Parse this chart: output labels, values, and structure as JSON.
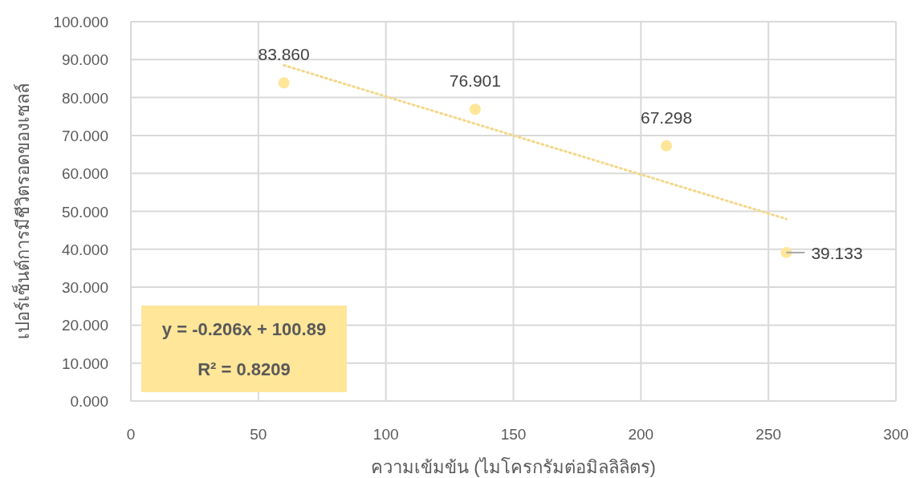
{
  "chart_data": {
    "type": "scatter",
    "xlabel": "ความเข้มข้น (ไมโครกรัมต่อมิลลิลิตร)",
    "ylabel": "เปอร์เซ็นต์การมีชีวิตรอดของเซลล์",
    "xlim": [
      0,
      300
    ],
    "xticks": [
      0,
      50,
      100,
      150,
      200,
      250,
      300
    ],
    "ylim": [
      0,
      100
    ],
    "yticks": [
      {
        "value": 0,
        "label": "0.000"
      },
      {
        "value": 10,
        "label": "10.000"
      },
      {
        "value": 20,
        "label": "20.000"
      },
      {
        "value": 30,
        "label": "30.000"
      },
      {
        "value": 40,
        "label": "40.000"
      },
      {
        "value": 50,
        "label": "50.000"
      },
      {
        "value": 60,
        "label": "60.000"
      },
      {
        "value": 70,
        "label": "70.000"
      },
      {
        "value": 80,
        "label": "80.000"
      },
      {
        "value": 90,
        "label": "90.000"
      },
      {
        "value": 100,
        "label": "100.000"
      }
    ],
    "grid": true,
    "series": [
      {
        "type": "line",
        "x": [
          60,
          257
        ],
        "values": [
          88.5,
          48.0
        ],
        "color": "#f2d88c",
        "line_style": "dotted"
      },
      {
        "type": "scatter",
        "x": [
          60,
          135,
          210,
          257
        ],
        "values": [
          83.86,
          76.901,
          67.298,
          39.133
        ],
        "color": "#ffe699",
        "marker": "circle",
        "value_labels": [
          "83.860",
          "76.901",
          "67.298",
          "39.133"
        ]
      }
    ],
    "annotations": [
      "y = -0.206x + 100.89",
      "R² = 0.8209"
    ]
  }
}
